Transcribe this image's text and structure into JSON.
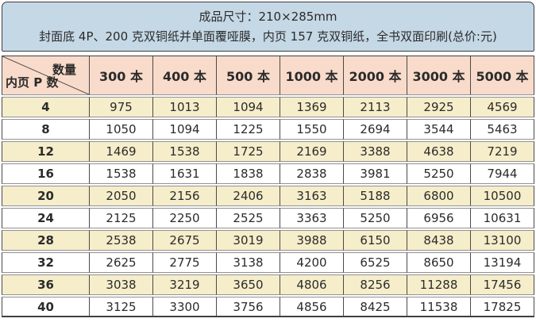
{
  "banner": {
    "line1": "成品尺寸：210×285mm",
    "line2": "封面底 4P、200 克双铜纸并单面覆哑膜，内页 157 克双铜纸，全书双面印刷(总价:元)"
  },
  "table": {
    "corner": {
      "top_right": "数量",
      "bottom_left": "内页 P 数"
    },
    "columns": [
      "300 本",
      "400 本",
      "500 本",
      "1000 本",
      "2000 本",
      "3000 本",
      "5000 本"
    ],
    "rows": [
      {
        "pages": "4",
        "values": [
          "975",
          "1013",
          "1094",
          "1369",
          "2113",
          "2925",
          "4569"
        ]
      },
      {
        "pages": "8",
        "values": [
          "1050",
          "1094",
          "1225",
          "1550",
          "2694",
          "3544",
          "5463"
        ]
      },
      {
        "pages": "12",
        "values": [
          "1469",
          "1538",
          "1725",
          "2169",
          "3388",
          "4638",
          "7219"
        ]
      },
      {
        "pages": "16",
        "values": [
          "1538",
          "1631",
          "1838",
          "2838",
          "3981",
          "5250",
          "7944"
        ]
      },
      {
        "pages": "20",
        "values": [
          "2050",
          "2156",
          "2406",
          "3163",
          "5188",
          "6800",
          "10500"
        ]
      },
      {
        "pages": "24",
        "values": [
          "2125",
          "2250",
          "2525",
          "3363",
          "5250",
          "6956",
          "10631"
        ]
      },
      {
        "pages": "28",
        "values": [
          "2538",
          "2675",
          "3019",
          "3988",
          "6150",
          "8438",
          "13100"
        ]
      },
      {
        "pages": "32",
        "values": [
          "2625",
          "2775",
          "3138",
          "4200",
          "6525",
          "8650",
          "13194"
        ]
      },
      {
        "pages": "36",
        "values": [
          "3038",
          "3219",
          "3650",
          "4806",
          "8256",
          "11288",
          "17456"
        ]
      },
      {
        "pages": "40",
        "values": [
          "3125",
          "3300",
          "3756",
          "4856",
          "8425",
          "11538",
          "17825"
        ]
      }
    ]
  },
  "colors": {
    "header_bg": "#c5d8e6",
    "pink_bg": "#f8dbca",
    "cream_bg": "#f6edca",
    "white_bg": "#ffffff",
    "border_dark": "#3f3f3f",
    "border_mid": "#4a4a4a",
    "border_light": "#919191",
    "text_color": "#2b2b2b"
  }
}
